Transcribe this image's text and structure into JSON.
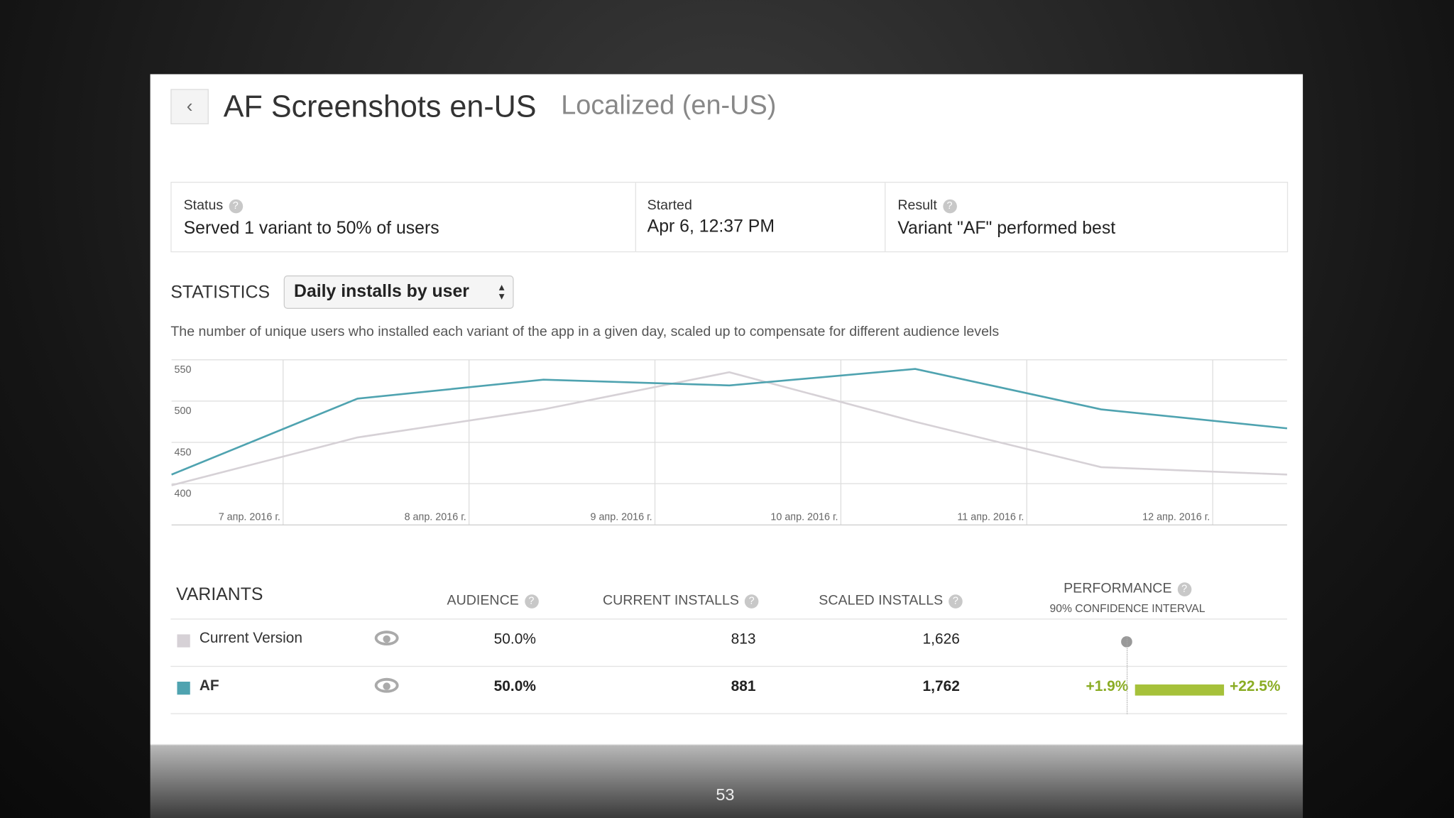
{
  "header": {
    "title": "AF Screenshots en-US",
    "subtitle": "Localized (en-US)"
  },
  "summary": [
    {
      "label": "Status",
      "value": "Served 1 variant to 50% of users"
    },
    {
      "label": "Started",
      "value": "Apr 6, 12:37 PM"
    },
    {
      "label": "Result",
      "value": "Variant \"AF\" performed best"
    }
  ],
  "statistics": {
    "label": "STATISTICS",
    "select": "Daily installs by user",
    "description": "The number of unique users who installed each variant of the app in a given day, scaled up to compensate for different audience levels"
  },
  "chart_data": {
    "type": "line",
    "x": [
      6.4,
      7.4,
      8.4,
      9.4,
      10.4,
      11.4,
      12.4
    ],
    "series": [
      {
        "name": "Current Version",
        "color": "#d6d1d6",
        "values": [
          398,
          456,
          490,
          535,
          475,
          420,
          411
        ]
      },
      {
        "name": "AF",
        "color": "#4fa3b0",
        "values": [
          411,
          503,
          526,
          519,
          539,
          490,
          467
        ]
      }
    ],
    "xlim": [
      6.4,
      12.4
    ],
    "xticks": [
      {
        "value": 7,
        "label": "7 апр. 2016 г."
      },
      {
        "value": 8,
        "label": "8 апр. 2016 г."
      },
      {
        "value": 9,
        "label": "9 апр. 2016 г."
      },
      {
        "value": 10,
        "label": "10 апр. 2016 г."
      },
      {
        "value": 11,
        "label": "11 апр. 2016 г."
      },
      {
        "value": 12,
        "label": "12 апр. 2016 г."
      }
    ],
    "ylim": [
      350,
      550
    ],
    "yticks": [
      400,
      450,
      500,
      550
    ],
    "grid": true
  },
  "variants": {
    "title": "VARIANTS",
    "columns": [
      "AUDIENCE",
      "CURRENT INSTALLS",
      "SCALED INSTALLS",
      "PERFORMANCE"
    ],
    "performance_note": "90% CONFIDENCE INTERVAL",
    "rows": [
      {
        "name": "Current Version",
        "color": "#d6d1d6",
        "audience": "50.0%",
        "current": "813",
        "scaled": "1,626"
      },
      {
        "name": "AF",
        "color": "#4fa3b0",
        "audience": "50.0%",
        "current": "881",
        "scaled": "1,762",
        "performance": {
          "values": [
            1.9,
            22.5
          ],
          "value_labels": [
            "+1.9%",
            "+22.5%"
          ],
          "color": "#a6c13a"
        }
      }
    ]
  },
  "slide_number": "53"
}
